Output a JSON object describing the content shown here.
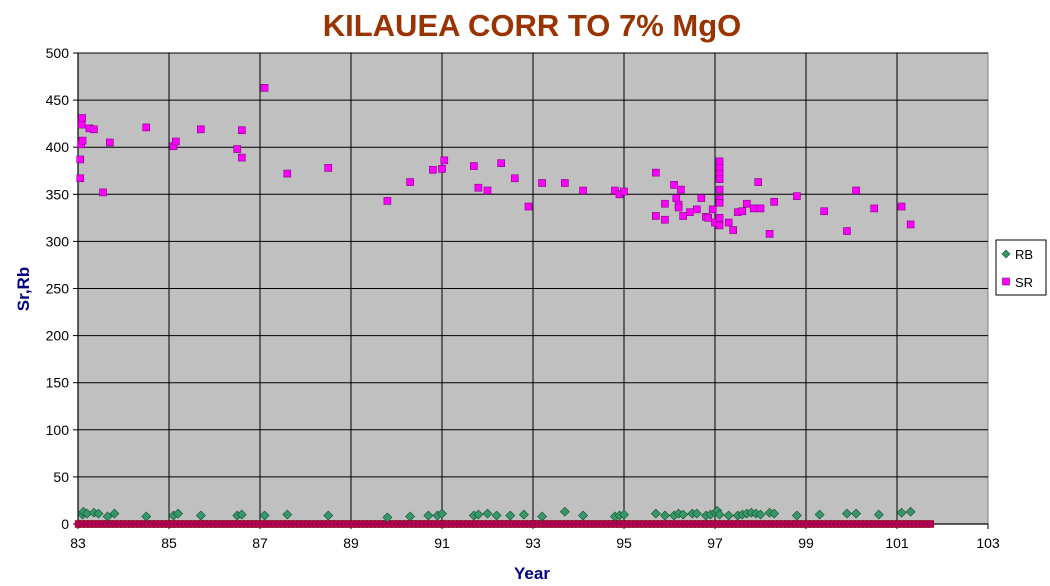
{
  "chart_data": {
    "type": "scatter",
    "title": "KILAUEA CORR TO 7% MgO",
    "xlabel": "Year",
    "ylabel": "Sr,Rb",
    "xlim": [
      83,
      103
    ],
    "ylim": [
      0,
      500
    ],
    "xticks": [
      "83",
      "85",
      "87",
      "89",
      "91",
      "93",
      "95",
      "97",
      "99",
      "101",
      "103"
    ],
    "yticks": [
      "0",
      "50",
      "100",
      "150",
      "200",
      "250",
      "300",
      "350",
      "400",
      "450",
      "500"
    ],
    "grid": true,
    "plot_background": "#c0c0c0",
    "legend_position": "right",
    "series": [
      {
        "name": "RB",
        "marker": "diamond",
        "color": "#339966",
        "points": [
          [
            83.1,
            10
          ],
          [
            83.12,
            13
          ],
          [
            83.2,
            11
          ],
          [
            83.35,
            12
          ],
          [
            83.45,
            11
          ],
          [
            83.65,
            8
          ],
          [
            83.8,
            11
          ],
          [
            84.5,
            8
          ],
          [
            85.1,
            9
          ],
          [
            85.2,
            11
          ],
          [
            85.7,
            9
          ],
          [
            86.5,
            9
          ],
          [
            86.6,
            10
          ],
          [
            87.1,
            9
          ],
          [
            87.6,
            10
          ],
          [
            88.5,
            9
          ],
          [
            89.8,
            7
          ],
          [
            90.3,
            8
          ],
          [
            90.7,
            9
          ],
          [
            90.9,
            9
          ],
          [
            91,
            11
          ],
          [
            91.7,
            9
          ],
          [
            91.8,
            10
          ],
          [
            92,
            11
          ],
          [
            92.2,
            9
          ],
          [
            92.5,
            9
          ],
          [
            92.8,
            10
          ],
          [
            93.2,
            8
          ],
          [
            93.7,
            13
          ],
          [
            94.1,
            9
          ],
          [
            94.8,
            8
          ],
          [
            94.9,
            9
          ],
          [
            95,
            10
          ],
          [
            95.7,
            11
          ],
          [
            95.9,
            9
          ],
          [
            96.1,
            9
          ],
          [
            96.2,
            11
          ],
          [
            96.3,
            10
          ],
          [
            96.5,
            11
          ],
          [
            96.6,
            11
          ],
          [
            96.8,
            9
          ],
          [
            96.9,
            10
          ],
          [
            97,
            12
          ],
          [
            97.05,
            14
          ],
          [
            97.1,
            10
          ],
          [
            97.3,
            9
          ],
          [
            97.5,
            9
          ],
          [
            97.6,
            10
          ],
          [
            97.7,
            11
          ],
          [
            97.8,
            12
          ],
          [
            97.9,
            11
          ],
          [
            98,
            10
          ],
          [
            98.2,
            12
          ],
          [
            98.3,
            11
          ],
          [
            98.8,
            9
          ],
          [
            99.3,
            10
          ],
          [
            99.9,
            11
          ],
          [
            100.1,
            11
          ],
          [
            100.6,
            10
          ],
          [
            101.1,
            12
          ],
          [
            101.3,
            13
          ]
        ]
      },
      {
        "name": "SR",
        "marker": "square",
        "color": "#ff00ff",
        "points": [
          [
            83.05,
            367
          ],
          [
            83.05,
            387
          ],
          [
            83.07,
            403
          ],
          [
            83.08,
            424
          ],
          [
            83.09,
            431
          ],
          [
            83.1,
            407
          ],
          [
            83.25,
            420
          ],
          [
            83.35,
            419
          ],
          [
            83.55,
            352
          ],
          [
            83.7,
            405
          ],
          [
            84.5,
            421
          ],
          [
            85.1,
            401
          ],
          [
            85.15,
            406
          ],
          [
            85.7,
            419
          ],
          [
            86.5,
            398
          ],
          [
            86.6,
            389
          ],
          [
            86.6,
            418
          ],
          [
            87.1,
            463
          ],
          [
            87.6,
            372
          ],
          [
            88.5,
            378
          ],
          [
            89.8,
            343
          ],
          [
            90.3,
            363
          ],
          [
            90.8,
            376
          ],
          [
            91,
            377
          ],
          [
            91.05,
            386
          ],
          [
            91.7,
            380
          ],
          [
            91.8,
            357
          ],
          [
            92,
            354
          ],
          [
            92.3,
            383
          ],
          [
            92.6,
            367
          ],
          [
            92.9,
            337
          ],
          [
            93.2,
            362
          ],
          [
            93.7,
            362
          ],
          [
            94.1,
            354
          ],
          [
            94.8,
            354
          ],
          [
            94.9,
            350
          ],
          [
            95,
            353
          ],
          [
            95.7,
            327
          ],
          [
            95.7,
            373
          ],
          [
            95.9,
            340
          ],
          [
            95.9,
            323
          ],
          [
            96.1,
            360
          ],
          [
            96.15,
            346
          ],
          [
            96.2,
            339
          ],
          [
            96.2,
            336
          ],
          [
            96.25,
            355
          ],
          [
            96.3,
            327
          ],
          [
            96.45,
            331
          ],
          [
            96.6,
            334
          ],
          [
            96.7,
            346
          ],
          [
            96.8,
            326
          ],
          [
            96.85,
            325
          ],
          [
            96.95,
            334
          ],
          [
            97,
            320
          ],
          [
            97.1,
            385
          ],
          [
            97.1,
            378
          ],
          [
            97.1,
            372
          ],
          [
            97.1,
            366
          ],
          [
            97.1,
            355
          ],
          [
            97.1,
            345
          ],
          [
            97.1,
            341
          ],
          [
            97.1,
            325
          ],
          [
            97.1,
            317
          ],
          [
            97.3,
            320
          ],
          [
            97.4,
            312
          ],
          [
            97.5,
            331
          ],
          [
            97.6,
            332
          ],
          [
            97.7,
            340
          ],
          [
            97.85,
            335
          ],
          [
            97.95,
            363
          ],
          [
            98,
            335
          ],
          [
            98.2,
            308
          ],
          [
            98.3,
            342
          ],
          [
            98.8,
            348
          ],
          [
            99.4,
            332
          ],
          [
            99.9,
            311
          ],
          [
            100.1,
            354
          ],
          [
            100.5,
            335
          ],
          [
            101.1,
            337
          ],
          [
            101.3,
            318
          ]
        ]
      }
    ]
  },
  "legend": {
    "items": [
      {
        "label": "RB"
      },
      {
        "label": "SR"
      }
    ]
  }
}
